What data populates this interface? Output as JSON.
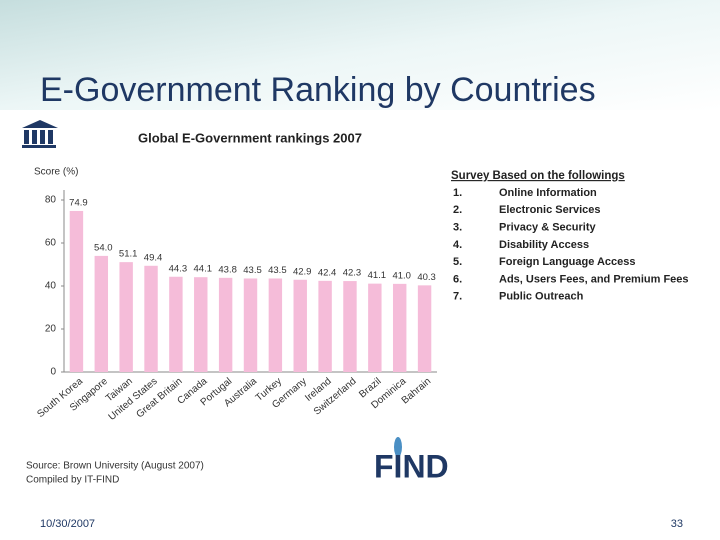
{
  "slide_title": "E-Government Ranking by Countries",
  "date": "10/30/2007",
  "page_number": "33",
  "survey": {
    "heading": "Survey Based on the followings",
    "items": [
      [
        "1.",
        "Online Information"
      ],
      [
        "2.",
        "Electronic Services"
      ],
      [
        "3.",
        "Privacy & Security"
      ],
      [
        "4.",
        "Disability Access"
      ],
      [
        "5.",
        "Foreign Language Access"
      ],
      [
        "6.",
        "Ads, Users Fees, and Premium Fees"
      ],
      [
        "7.",
        "Public Outreach"
      ]
    ]
  },
  "source": [
    "Source: Brown University (August 2007)",
    "Compiled by IT-FIND"
  ],
  "logo": "FIND",
  "chart_data": {
    "type": "bar",
    "title": "Global E-Government rankings 2007",
    "ylabel": "Score (%)",
    "categories": [
      "South Korea",
      "Singapore",
      "Taiwan",
      "United States",
      "Great Britain",
      "Canada",
      "Portugal",
      "Australia",
      "Turkey",
      "Germany",
      "Ireland",
      "Switzerland",
      "Brazil",
      "Dominica",
      "Bahrain"
    ],
    "values": [
      74.9,
      54,
      51.1,
      49.4,
      44.3,
      44.1,
      43.8,
      43.5,
      43.5,
      42.9,
      42.4,
      42.3,
      41.1,
      41,
      40.3
    ],
    "value_labels": [
      "74.9",
      "54.0",
      "51.1",
      "49.4",
      "44.3",
      "44.1",
      "43.8",
      "43.5",
      "43.5",
      "42.9",
      "42.4",
      "42.3",
      "41.1",
      "41.0",
      "40.3"
    ],
    "color": "#f5bcd9",
    "ylim": [
      0,
      80
    ],
    "yticks": [
      0,
      20,
      40,
      60,
      80
    ],
    "grid": false
  }
}
